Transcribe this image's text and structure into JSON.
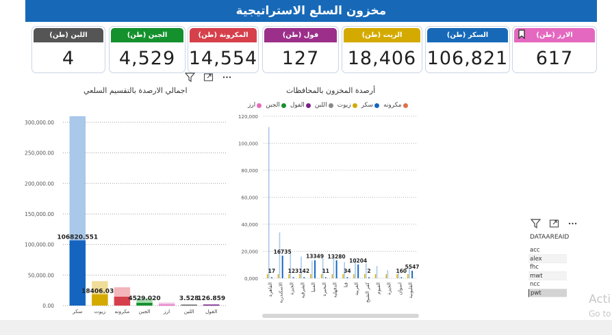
{
  "header": {
    "title": "مخزون السلع الاستراتيجية"
  },
  "kpis": [
    {
      "label": "اللبن (طن)",
      "value": "4",
      "color": "#555555"
    },
    {
      "label": "الجبن (طن)",
      "value": "4,529",
      "color": "#14912d"
    },
    {
      "label": "المكرونة (طن)",
      "value": "14,554",
      "color": "#d6404b"
    },
    {
      "label": "فول (طن)",
      "value": "127",
      "color": "#9b2f8a"
    },
    {
      "label": "الزيت (طن)",
      "value": "18,406",
      "color": "#d4aa00"
    },
    {
      "label": "السكر (طن)",
      "value": "106,821",
      "color": "#1769b8"
    },
    {
      "label": "الارز (طن)",
      "value": "617",
      "color": "#e568c0"
    }
  ],
  "toolbar_icons": [
    "filter-icon",
    "focus-mode-icon",
    "more-options-icon"
  ],
  "chart_data": [
    {
      "type": "bar",
      "title": "اجمالي الارصدة بالتقسيم السلعي",
      "categories": [
        "سكر",
        "زيوت",
        "مكرونه",
        "الجبن",
        "ارز",
        "اللبن",
        "الفول"
      ],
      "values": [
        106820.551,
        18406.037,
        14554,
        4529.02,
        617,
        3.528,
        126.859
      ],
      "value_labels": [
        "106820.551",
        "18406.037",
        "",
        "4529.020",
        "",
        "3.528",
        "126.859"
      ],
      "background_values": [
        310000,
        40000,
        30000,
        12000,
        5000,
        1500,
        2000
      ],
      "colors": [
        "#1565c0",
        "#d4aa00",
        "#d6404b",
        "#14912d",
        "#e568c0",
        "#666666",
        "#7b1f8a"
      ],
      "background_colors": [
        "#a9c8ea",
        "#f0dd99",
        "#f2b5ba",
        "#a6dcae",
        "#f5c6e8",
        "#d0d0d0",
        "#d9b9dd"
      ],
      "ylim": [
        0,
        310000
      ],
      "yticks": [
        "0.00",
        "50,000.00",
        "100,000.00",
        "150,000.00",
        "200,000.00",
        "250,000.00",
        "300,000.00"
      ],
      "ytick_values": [
        0,
        50000,
        100000,
        150000,
        200000,
        250000,
        300000
      ],
      "grid": true
    },
    {
      "type": "bar",
      "title": "أرصدة المخزون بالمحافظات",
      "legend": [
        {
          "name": "مكرونه",
          "color": "#e0704a"
        },
        {
          "name": "سكر",
          "color": "#1565c0"
        },
        {
          "name": "زيوت",
          "color": "#d4aa00"
        },
        {
          "name": "اللبن",
          "color": "#888888"
        },
        {
          "name": "الفول",
          "color": "#7b1f8a"
        },
        {
          "name": "الجبن",
          "color": "#14912d"
        },
        {
          "name": "ارز",
          "color": "#e568c0"
        }
      ],
      "categories": [
        "القاهرة",
        "الاسكندرية",
        "الجيزة",
        "الشرقية",
        "المنيا",
        "البحيرة",
        "الدقهلية",
        "قنا",
        "الغربية",
        "كفر الشيخ",
        "الفيوم",
        "الجيزة",
        "اسوان",
        "القليوبية"
      ],
      "highlight_values": [
        112000,
        34000,
        19000,
        16000,
        13000,
        15000,
        15500,
        12000,
        14000,
        11000,
        9000,
        6000,
        4000,
        8000
      ],
      "sugar_values": [
        17,
        16735,
        123,
        142,
        13349,
        11,
        13280,
        34,
        10204,
        2,
        0,
        0,
        160,
        5547
      ],
      "data_labels": [
        "17",
        "123",
        "142",
        "11",
        "34",
        "2",
        "16735",
        "13349",
        "13280",
        "10204",
        "160",
        "5547"
      ],
      "ylim": [
        0,
        120000
      ],
      "yticks": [
        "0,000",
        "20,000",
        "40,000",
        "60,000",
        "80,000",
        "100,000",
        "120,000"
      ],
      "ytick_values": [
        0,
        20000,
        40000,
        60000,
        80000,
        100000,
        120000
      ],
      "grid": true
    }
  ],
  "slicer": {
    "title": "DATAAREAID",
    "items": [
      "acc",
      "alex",
      "fhc",
      "mwt",
      "ncc",
      "pwt"
    ],
    "selected": "pwt"
  },
  "watermark": {
    "line1": "Acti",
    "line2": "Go to"
  }
}
